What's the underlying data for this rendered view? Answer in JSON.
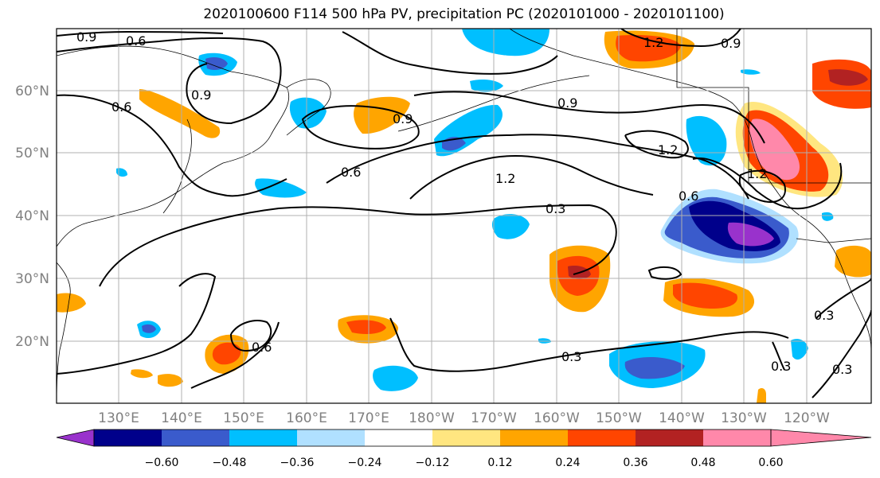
{
  "title": "2020100600 F114 500 hPa PV, precipitation PC (2020101000 - 2020101100)",
  "lat_labels": [
    "20°N",
    "30°N",
    "40°N",
    "50°N",
    "60°N"
  ],
  "lon_labels": [
    "130°E",
    "140°E",
    "150°E",
    "160°E",
    "170°E",
    "180°W",
    "170°W",
    "160°W",
    "150°W",
    "140°W",
    "130°W",
    "120°W"
  ],
  "colorbar": {
    "ticks": [
      "−0.60",
      "−0.48",
      "−0.36",
      "−0.24",
      "−0.12",
      "0.12",
      "0.24",
      "0.36",
      "0.48",
      "0.60"
    ],
    "colors": [
      "#9932cc",
      "#00008b",
      "#3a5bcc",
      "#00bfff",
      "#b0e0ff",
      "#ffffff",
      "#ffe680",
      "#ffa500",
      "#ff4500",
      "#b22222",
      "#ff88aa"
    ]
  },
  "contour_labels": [
    "0.9",
    "0.6",
    "1.2",
    "0.9",
    "0.6",
    "0.9",
    "0.9",
    "0.9",
    "0.6",
    "1.2",
    "1.2",
    "1.2",
    "0.6",
    "0.3",
    "0.3",
    "0.6",
    "0.3",
    "0.3",
    "0.3"
  ]
}
